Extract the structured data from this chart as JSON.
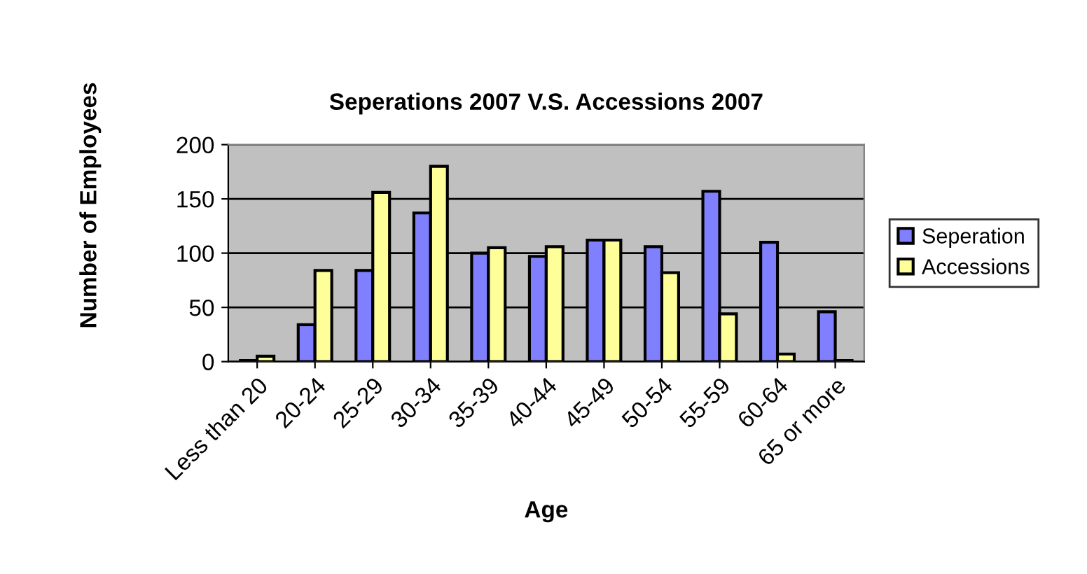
{
  "chart_data": {
    "type": "bar",
    "title": "Seperations 2007 V.S. Accessions 2007",
    "xlabel": "Age",
    "ylabel": "Number of Employees",
    "categories": [
      "Less than 20",
      "20-24",
      "25-29",
      "30-34",
      "35-39",
      "40-44",
      "45-49",
      "50-54",
      "55-59",
      "60-64",
      "65 or more"
    ],
    "series": [
      {
        "name": "Seperation",
        "color": "#8080ff",
        "values": [
          1,
          34,
          84,
          137,
          100,
          97,
          112,
          106,
          157,
          110,
          46
        ]
      },
      {
        "name": "Accessions",
        "color": "#ffff99",
        "values": [
          5,
          84,
          156,
          180,
          105,
          106,
          112,
          82,
          44,
          7,
          1
        ]
      }
    ],
    "ylim": [
      0,
      200
    ],
    "yticks": [
      0,
      50,
      100,
      150,
      200
    ],
    "grid": "y",
    "legend": "right"
  }
}
